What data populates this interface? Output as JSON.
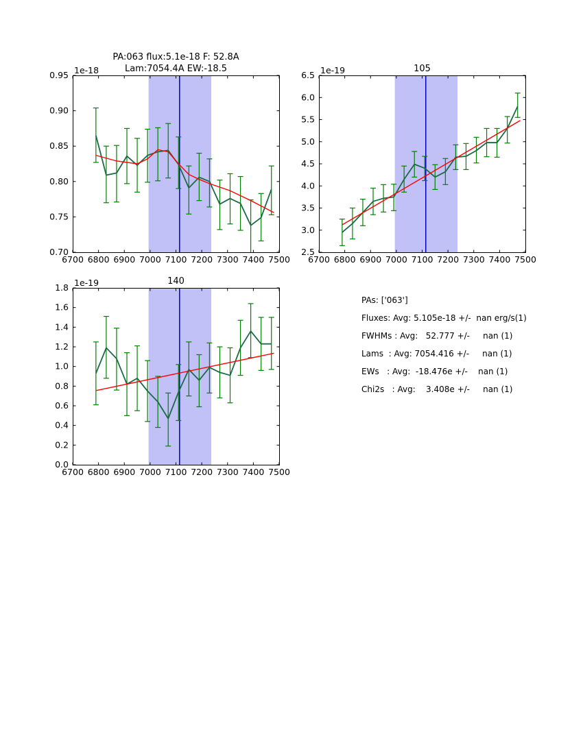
{
  "figure": {
    "colors": {
      "data_line": "#1a6b44",
      "error_bar": "#008000",
      "fit_line": "#ff0000",
      "band": "#c1c1f7",
      "vline": "#0000cd",
      "frame": "#000000"
    },
    "stats": {
      "lines": [
        "PAs: ['063']",
        "Fluxes: Avg: 5.105e-18 +/-  nan erg/s(1)",
        "FWHMs : Avg:   52.777 +/-     nan (1)",
        "Lams  : Avg: 7054.416 +/-     nan (1)",
        "EWs   : Avg:  -18.476e +/-    nan (1)",
        "Chi2s   : Avg:    3.408e +/-     nan (1)"
      ]
    }
  },
  "chart_data": [
    {
      "type": "line",
      "title_lines": [
        "PA:063 flux:5.1e-18 F: 52.8A",
        "Lam:7054.4A EW:-18.5"
      ],
      "y_offset_label": "1e-18",
      "xlim": [
        6700,
        7500
      ],
      "ylim": [
        0.7,
        0.95
      ],
      "xticks": [
        6700,
        6800,
        6900,
        7000,
        7100,
        7200,
        7300,
        7400,
        7500
      ],
      "xtick_labels": [
        "6700",
        "6800",
        "6900",
        "7000",
        "7100",
        "7200",
        "7300",
        "7400",
        "7500"
      ],
      "yticks": [
        0.7,
        0.75,
        0.8,
        0.85,
        0.9,
        0.95
      ],
      "ytick_labels": [
        "0.70",
        "0.75",
        "0.80",
        "0.85",
        "0.90",
        "0.95"
      ],
      "band": [
        6994,
        7237
      ],
      "vline": 7114,
      "grid": false,
      "x": [
        6790,
        6830,
        6870,
        6910,
        6950,
        6990,
        7030,
        7070,
        7110,
        7150,
        7190,
        7230,
        7270,
        7310,
        7350,
        7390,
        7430,
        7470
      ],
      "series": [
        {
          "name": "spectrum",
          "y": [
            0.865,
            0.809,
            0.812,
            0.836,
            0.823,
            0.837,
            0.842,
            0.844,
            0.824,
            0.791,
            0.806,
            0.8,
            0.768,
            0.776,
            0.769,
            0.738,
            0.749,
            0.789
          ],
          "err_lo": [
            0.827,
            0.77,
            0.771,
            0.797,
            0.785,
            0.799,
            0.801,
            0.805,
            0.79,
            0.754,
            0.773,
            0.764,
            0.732,
            0.74,
            0.731,
            0.695,
            0.716,
            0.753
          ],
          "err_hi": [
            0.904,
            0.85,
            0.851,
            0.875,
            0.861,
            0.874,
            0.876,
            0.882,
            0.863,
            0.822,
            0.84,
            0.832,
            0.802,
            0.811,
            0.807,
            0.774,
            0.783,
            0.822
          ]
        },
        {
          "name": "fit",
          "x": [
            6790,
            6870,
            6950,
            6990,
            7030,
            7070,
            7110,
            7150,
            7190,
            7230,
            7310,
            7390,
            7480
          ],
          "y": [
            0.837,
            0.829,
            0.825,
            0.832,
            0.845,
            0.842,
            0.825,
            0.81,
            0.803,
            0.797,
            0.787,
            0.773,
            0.756
          ]
        }
      ]
    },
    {
      "type": "line",
      "title_lines": [
        "105"
      ],
      "y_offset_label": "1e-19",
      "xlim": [
        6700,
        7500
      ],
      "ylim": [
        2.5,
        6.5
      ],
      "xticks": [
        6700,
        6800,
        6900,
        7000,
        7100,
        7200,
        7300,
        7400,
        7500
      ],
      "xtick_labels": [
        "6700",
        "6800",
        "6900",
        "7000",
        "7100",
        "7200",
        "7300",
        "7400",
        "7500"
      ],
      "yticks": [
        2.5,
        3.0,
        3.5,
        4.0,
        4.5,
        5.0,
        5.5,
        6.0,
        6.5
      ],
      "ytick_labels": [
        "2.5",
        "3.0",
        "3.5",
        "4.0",
        "4.5",
        "5.0",
        "5.5",
        "6.0",
        "6.5"
      ],
      "band": [
        6994,
        7237
      ],
      "vline": 7114,
      "grid": false,
      "x": [
        6790,
        6830,
        6870,
        6910,
        6950,
        6990,
        7030,
        7070,
        7110,
        7150,
        7190,
        7230,
        7270,
        7310,
        7350,
        7390,
        7430,
        7470
      ],
      "series": [
        {
          "name": "spectrum",
          "y": [
            2.95,
            3.15,
            3.4,
            3.65,
            3.72,
            3.75,
            4.15,
            4.49,
            4.4,
            4.2,
            4.32,
            4.65,
            4.67,
            4.8,
            4.98,
            4.98,
            5.3,
            5.8
          ],
          "err_lo": [
            2.65,
            2.8,
            3.1,
            3.35,
            3.41,
            3.44,
            3.86,
            4.2,
            4.12,
            3.92,
            4.03,
            4.37,
            4.37,
            4.52,
            4.66,
            4.65,
            4.97,
            5.55
          ],
          "err_hi": [
            3.25,
            3.5,
            3.7,
            3.95,
            4.03,
            4.04,
            4.45,
            4.78,
            4.67,
            4.48,
            4.62,
            4.93,
            4.96,
            5.1,
            5.3,
            5.3,
            5.57,
            6.1
          ]
        },
        {
          "name": "fit",
          "x": [
            6790,
            7480
          ],
          "y": [
            3.12,
            5.48
          ]
        }
      ]
    },
    {
      "type": "line",
      "title_lines": [
        "140"
      ],
      "y_offset_label": "1e-19",
      "xlim": [
        6700,
        7500
      ],
      "ylim": [
        0.0,
        1.8
      ],
      "xticks": [
        6700,
        6800,
        6900,
        7000,
        7100,
        7200,
        7300,
        7400,
        7500
      ],
      "xtick_labels": [
        "6700",
        "6800",
        "6900",
        "7000",
        "7100",
        "7200",
        "7300",
        "7400",
        "7500"
      ],
      "yticks": [
        0.0,
        0.2,
        0.4,
        0.6,
        0.8,
        1.0,
        1.2,
        1.4,
        1.6,
        1.8
      ],
      "ytick_labels": [
        "0.0",
        "0.2",
        "0.4",
        "0.6",
        "0.8",
        "1.0",
        "1.2",
        "1.4",
        "1.6",
        "1.8"
      ],
      "band": [
        6994,
        7237
      ],
      "vline": 7114,
      "grid": false,
      "x": [
        6790,
        6830,
        6870,
        6910,
        6950,
        6990,
        7030,
        7070,
        7110,
        7150,
        7190,
        7230,
        7270,
        7310,
        7350,
        7390,
        7430,
        7470
      ],
      "series": [
        {
          "name": "spectrum",
          "y": [
            0.93,
            1.19,
            1.08,
            0.82,
            0.88,
            0.75,
            0.64,
            0.47,
            0.74,
            0.97,
            0.86,
            0.99,
            0.94,
            0.91,
            1.19,
            1.36,
            1.23,
            1.23
          ],
          "err_lo": [
            0.61,
            0.88,
            0.76,
            0.5,
            0.55,
            0.44,
            0.38,
            0.19,
            0.45,
            0.7,
            0.59,
            0.73,
            0.68,
            0.63,
            0.91,
            1.09,
            0.96,
            0.97
          ],
          "err_hi": [
            1.25,
            1.51,
            1.39,
            1.14,
            1.21,
            1.06,
            0.9,
            0.73,
            1.02,
            1.25,
            1.12,
            1.24,
            1.2,
            1.19,
            1.47,
            1.64,
            1.5,
            1.5
          ]
        },
        {
          "name": "fit",
          "x": [
            6790,
            7480
          ],
          "y": [
            0.755,
            1.135
          ]
        }
      ]
    }
  ]
}
